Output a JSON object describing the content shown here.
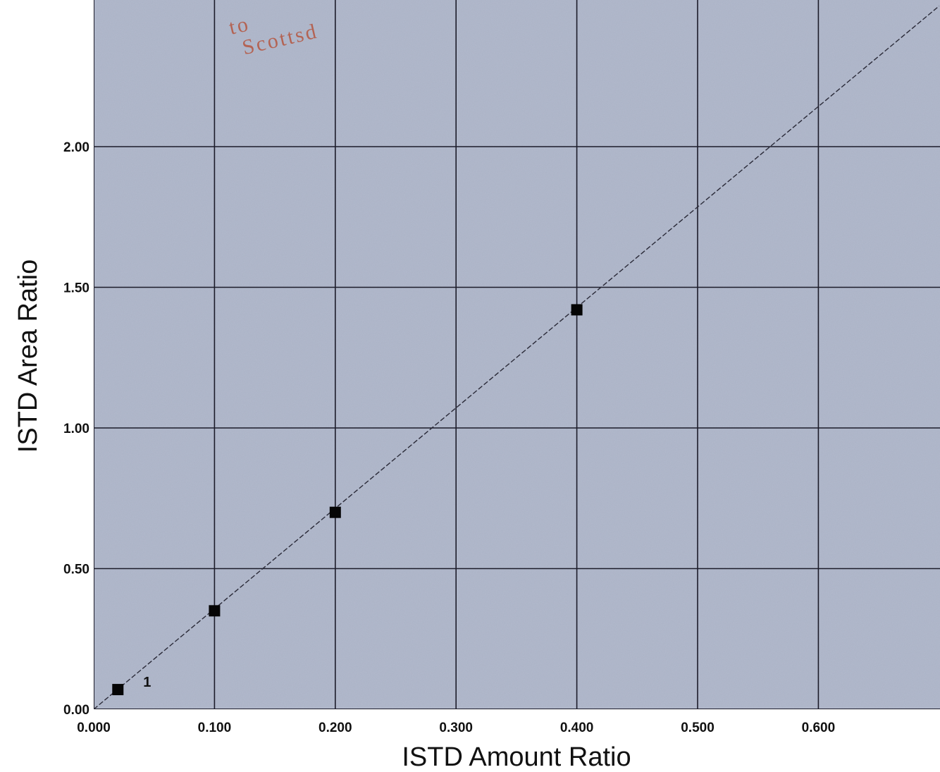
{
  "chart_data": {
    "type": "scatter",
    "title": "",
    "xlabel": "ISTD Amount Ratio",
    "ylabel": "ISTD Area Ratio",
    "xlim": [
      0,
      0.7
    ],
    "ylim": [
      0,
      2.5
    ],
    "x_ticks": [
      "0.000",
      "0.100",
      "0.200",
      "0.300",
      "0.400",
      "0.500",
      "0.600"
    ],
    "y_ticks": [
      "0.00",
      "0.50",
      "1.00",
      "1.50",
      "2.00"
    ],
    "grid": true,
    "series": [
      {
        "points": [
          {
            "x": 0.02,
            "y": 0.07,
            "label": "1"
          },
          {
            "x": 0.1,
            "y": 0.35,
            "label": ""
          },
          {
            "x": 0.2,
            "y": 0.7,
            "label": ""
          },
          {
            "x": 0.4,
            "y": 1.42,
            "label": ""
          }
        ]
      }
    ],
    "fit_line": {
      "x": [
        0,
        0.7
      ],
      "y": [
        0,
        2.5
      ]
    },
    "stamp_lines": [
      "to",
      "Scottsd"
    ],
    "colors": {
      "plot_background": "#aab2c6",
      "grid": "#1c1c2a",
      "marker": "#050505",
      "fit_line": "#2a2a38",
      "stamp": "#b5553f"
    }
  }
}
